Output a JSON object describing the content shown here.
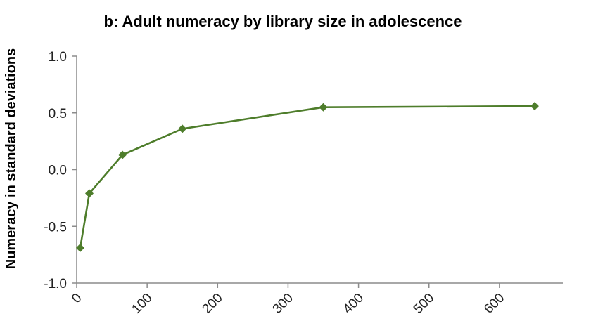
{
  "chart_data": {
    "type": "line",
    "title": "b: Adult numeracy by library size in adolescence",
    "xlabel": "",
    "ylabel": "Numeracy in standard deviations",
    "xlim": [
      0,
      690
    ],
    "ylim": [
      -1.0,
      1.0
    ],
    "x_ticks": [
      0,
      100,
      200,
      300,
      400,
      500,
      600
    ],
    "y_ticks": [
      -1.0,
      -0.5,
      0.0,
      0.5,
      1.0
    ],
    "y_tick_labels": [
      "-1.0",
      "-0.5",
      "0.0",
      "0.5",
      "1.0"
    ],
    "x_tick_labels": [
      "0",
      "100",
      "200",
      "300",
      "400",
      "500",
      "600"
    ],
    "grid": false,
    "series": [
      {
        "x": [
          5,
          18,
          65,
          150,
          350,
          650
        ],
        "y": [
          -0.69,
          -0.21,
          0.13,
          0.36,
          0.55,
          0.56
        ],
        "color": "#4e7d2b",
        "marker": "diamond"
      }
    ]
  }
}
